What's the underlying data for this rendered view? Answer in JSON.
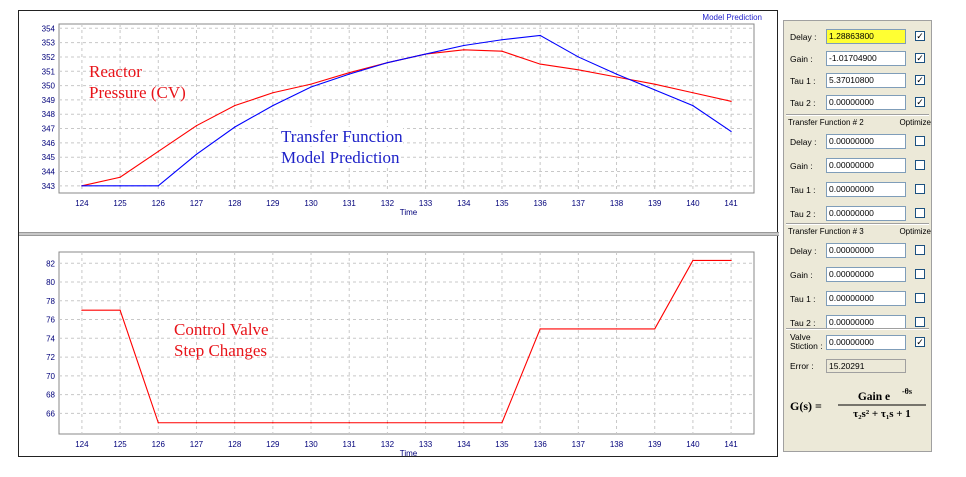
{
  "chart_data": [
    {
      "type": "line",
      "title": "Model Prediction",
      "xlabel": "Time",
      "ylabel": "",
      "x": [
        124,
        125,
        126,
        127,
        128,
        129,
        130,
        131,
        132,
        133,
        134,
        135,
        136,
        137,
        138,
        139,
        140,
        141
      ],
      "xlim": [
        123.4,
        141.6
      ],
      "ylim": [
        342.5,
        354.3
      ],
      "yticks": [
        343,
        344,
        345,
        346,
        347,
        348,
        349,
        350,
        351,
        352,
        353,
        354
      ],
      "series": [
        {
          "name": "Reactor Pressure (CV)",
          "color": "#ff0000",
          "x": [
            124,
            125,
            126,
            127,
            128,
            129,
            130,
            131,
            132,
            133,
            134,
            135,
            136,
            137,
            138,
            139,
            140,
            141
          ],
          "values": [
            343.0,
            343.6,
            345.4,
            347.2,
            348.6,
            349.5,
            350.1,
            350.9,
            351.6,
            352.2,
            352.5,
            352.4,
            351.5,
            351.1,
            350.6,
            350.1,
            349.5,
            348.9
          ]
        },
        {
          "name": "Transfer Function Model Prediction",
          "color": "#0000ff",
          "x": [
            124,
            125,
            126,
            127,
            128,
            129,
            130,
            131,
            132,
            133,
            134,
            135,
            136,
            137,
            138,
            139,
            140,
            141
          ],
          "values": [
            343.0,
            343.0,
            343.0,
            345.2,
            347.1,
            348.6,
            349.9,
            350.8,
            351.6,
            352.2,
            352.8,
            353.2,
            353.5,
            352.0,
            350.8,
            349.7,
            348.6,
            346.8
          ]
        }
      ]
    },
    {
      "type": "line",
      "title": "",
      "xlabel": "Time",
      "ylabel": "",
      "x": [
        124,
        125,
        126,
        127,
        128,
        129,
        130,
        131,
        132,
        133,
        134,
        135,
        136,
        137,
        138,
        139,
        140,
        141
      ],
      "xlim": [
        123.4,
        141.6
      ],
      "ylim": [
        63.8,
        83.2
      ],
      "yticks": [
        66,
        68,
        70,
        72,
        74,
        76,
        78,
        80,
        82
      ],
      "series": [
        {
          "name": "Control Valve Step Changes",
          "color": "#ff0000",
          "x": [
            124,
            125,
            126,
            127,
            128,
            129,
            130,
            131,
            132,
            133,
            134,
            135,
            136,
            137,
            138,
            139,
            140,
            141
          ],
          "values": [
            77,
            77,
            65,
            65,
            65,
            65,
            65,
            65,
            65,
            65,
            65,
            65,
            75,
            75,
            75,
            75,
            82.3,
            82.3
          ]
        }
      ]
    }
  ],
  "annotations": {
    "reactor_line1": "Reactor",
    "reactor_line2": "Pressure (CV)",
    "tf_line1": "Transfer Function",
    "tf_line2": "Model Prediction",
    "cv_line1": "Control Valve",
    "cv_line2": "Step Changes"
  },
  "panel": {
    "tf1": [
      {
        "label": "Delay :",
        "value": "1.28863800",
        "checked": true,
        "highlight": true
      },
      {
        "label": "Gain  :",
        "value": "-1.01704900",
        "checked": true
      },
      {
        "label": "Tau 1 :",
        "value": "5.37010800",
        "checked": true
      },
      {
        "label": "Tau 2 :",
        "value": "0.00000000",
        "checked": true
      }
    ],
    "tf2_header": "Transfer Function # 2",
    "tf2_optimize": "Optimize",
    "tf2": [
      {
        "label": "Delay :",
        "value": "0.00000000",
        "checked": false
      },
      {
        "label": "Gain  :",
        "value": "0.00000000",
        "checked": false
      },
      {
        "label": "Tau 1 :",
        "value": "0.00000000",
        "checked": false
      },
      {
        "label": "Tau 2 :",
        "value": "0.00000000",
        "checked": false
      }
    ],
    "tf3_header": "Transfer Function # 3",
    "tf3_optimize": "Optimize",
    "tf3": [
      {
        "label": "Delay :",
        "value": "0.00000000",
        "checked": false
      },
      {
        "label": "Gain  :",
        "value": "0.00000000",
        "checked": false
      },
      {
        "label": "Tau 1 :",
        "value": "0.00000000",
        "checked": false
      },
      {
        "label": "Tau 2 :",
        "value": "0.00000000",
        "checked": false
      }
    ],
    "stiction_label_1": "Valve",
    "stiction_label_2": "Stiction :",
    "stiction_value": "0.00000000",
    "stiction_checked": true,
    "error_label": "Error :",
    "error_value": "15.20291",
    "formula": {
      "lhs": "G(s) = ",
      "num_main": "Gain e",
      "num_sup": "-θs",
      "den": "τ₂s² + τ₁s + 1"
    }
  }
}
